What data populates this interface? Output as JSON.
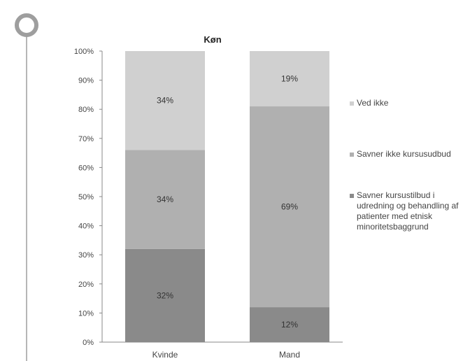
{
  "chart_data": {
    "type": "bar",
    "stacked": true,
    "title": "Køn",
    "categories": [
      "Kvinde",
      "Mand"
    ],
    "series": [
      {
        "name": "Savner  kursustilbud i udredning og behandling af patienter med etnisk minoritetsbaggrund",
        "values": [
          32,
          12
        ],
        "labels": [
          "32%",
          "12%"
        ],
        "color": "#8a8a8a"
      },
      {
        "name": "Savner ikke kursusudbud",
        "values": [
          34,
          69
        ],
        "labels": [
          "34%",
          "69%"
        ],
        "color": "#b0b0b0"
      },
      {
        "name": "Ved ikke",
        "values": [
          34,
          19
        ],
        "labels": [
          "34%",
          "19%"
        ],
        "color": "#d0d0d0"
      }
    ],
    "y_ticks": [
      "0%",
      "10%",
      "20%",
      "30%",
      "40%",
      "50%",
      "60%",
      "70%",
      "80%",
      "90%",
      "100%"
    ],
    "ylim": [
      0,
      100
    ],
    "grid": false,
    "legend_position": "right"
  },
  "colors": {
    "decoration": "#9e9e9e",
    "axis": "#888888"
  }
}
